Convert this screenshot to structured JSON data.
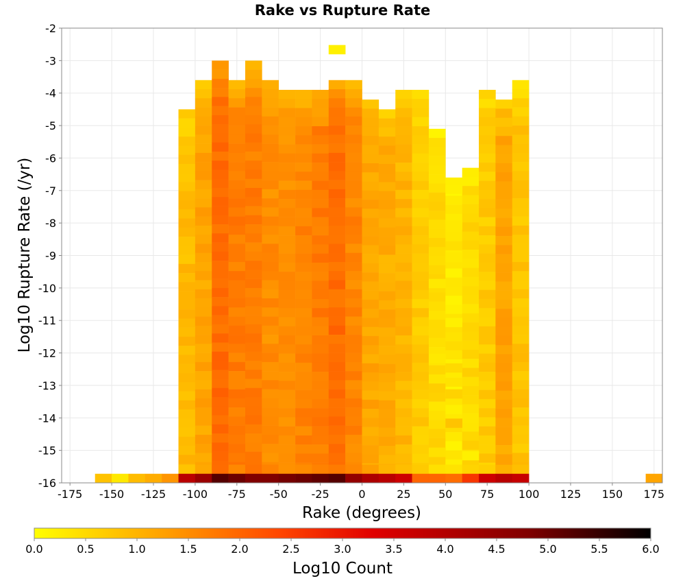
{
  "chart_data": {
    "type": "heatmap",
    "title": "Rake vs Rupture Rate",
    "xlabel": "Rake (degrees)",
    "ylabel": "Log10 Rupture Rate (/yr)",
    "xlim": [
      -180,
      180
    ],
    "ylim": [
      -16,
      -2
    ],
    "x_ticks": [
      -175,
      -150,
      -125,
      -100,
      -75,
      -50,
      -25,
      0,
      25,
      50,
      75,
      100,
      125,
      150,
      175
    ],
    "y_ticks": [
      -2,
      -3,
      -4,
      -5,
      -6,
      -7,
      -8,
      -9,
      -10,
      -11,
      -12,
      -13,
      -14,
      -15,
      -16
    ],
    "grid": true,
    "bin_width_deg": 10,
    "bin_height_log": 0.28,
    "colorbar": {
      "label": "Log10 Count",
      "min": 0,
      "max": 6,
      "ticks": [
        "0.0",
        "0.5",
        "1.0",
        "1.5",
        "2.0",
        "2.5",
        "3.0",
        "3.5",
        "4.0",
        "4.5",
        "5.0",
        "5.5",
        "6.0"
      ],
      "colors": [
        "#ffff00",
        "#ffa500",
        "#ff4500",
        "#e00000",
        "#800000",
        "#000000"
      ]
    },
    "column_profiles": [
      {
        "x": -105,
        "top": -4.5,
        "level": 0.9
      },
      {
        "x": -95,
        "top": -3.6,
        "level": 1.2
      },
      {
        "x": -85,
        "top": -3.0,
        "level": 1.9
      },
      {
        "x": -75,
        "top": -3.6,
        "level": 1.7
      },
      {
        "x": -65,
        "top": -3.0,
        "level": 1.7
      },
      {
        "x": -55,
        "top": -3.6,
        "level": 1.5
      },
      {
        "x": -45,
        "top": -3.9,
        "level": 1.5
      },
      {
        "x": -35,
        "top": -3.9,
        "level": 1.6
      },
      {
        "x": -25,
        "top": -3.9,
        "level": 1.7
      },
      {
        "x": -15,
        "top": -3.6,
        "level": 1.9
      },
      {
        "x": -5,
        "top": -3.6,
        "level": 1.6
      },
      {
        "x": 5,
        "top": -4.2,
        "level": 1.2
      },
      {
        "x": 15,
        "top": -4.5,
        "level": 1.1
      },
      {
        "x": 25,
        "top": -3.9,
        "level": 1.0
      },
      {
        "x": 35,
        "top": -3.9,
        "level": 0.7
      },
      {
        "x": 45,
        "top": -5.1,
        "level": 0.5
      },
      {
        "x": 55,
        "top": -6.6,
        "level": 0.3
      },
      {
        "x": 65,
        "top": -6.3,
        "level": 0.5
      },
      {
        "x": 75,
        "top": -3.9,
        "level": 0.7
      },
      {
        "x": 85,
        "top": -4.2,
        "level": 1.2
      },
      {
        "x": 95,
        "top": -3.6,
        "level": 0.8
      }
    ],
    "bottom_row": [
      {
        "x": -155,
        "value": 0.8
      },
      {
        "x": -145,
        "value": 0.3
      },
      {
        "x": -135,
        "value": 0.9
      },
      {
        "x": -125,
        "value": 1.1
      },
      {
        "x": -115,
        "value": 1.4
      },
      {
        "x": -105,
        "value": 3.9
      },
      {
        "x": -95,
        "value": 4.4
      },
      {
        "x": -85,
        "value": 5.2
      },
      {
        "x": -75,
        "value": 5.0
      },
      {
        "x": -65,
        "value": 4.8
      },
      {
        "x": -55,
        "value": 4.8
      },
      {
        "x": -45,
        "value": 4.9
      },
      {
        "x": -35,
        "value": 5.0
      },
      {
        "x": -25,
        "value": 5.1
      },
      {
        "x": -15,
        "value": 5.2
      },
      {
        "x": -5,
        "value": 4.5
      },
      {
        "x": 5,
        "value": 4.1
      },
      {
        "x": 15,
        "value": 3.9
      },
      {
        "x": 25,
        "value": 3.6
      },
      {
        "x": 35,
        "value": 2.0
      },
      {
        "x": 45,
        "value": 2.0
      },
      {
        "x": 55,
        "value": 1.9
      },
      {
        "x": 65,
        "value": 2.6
      },
      {
        "x": 75,
        "value": 3.6
      },
      {
        "x": 85,
        "value": 3.9
      },
      {
        "x": 95,
        "value": 3.7
      },
      {
        "x": 175,
        "value": 1.2
      }
    ],
    "isolated_cells": [
      {
        "x": -15,
        "y": -2.8,
        "value": 0.2
      },
      {
        "x": 55,
        "y": -7.1,
        "value": 0.2
      },
      {
        "x": 55,
        "y": -8.2,
        "value": 0.3
      },
      {
        "x": 55,
        "y": -9.2,
        "value": 0.3
      },
      {
        "x": 45,
        "y": -10.0,
        "value": 0.3
      },
      {
        "x": 55,
        "y": -11.2,
        "value": 0.2
      },
      {
        "x": 45,
        "y": -12.3,
        "value": 0.3
      },
      {
        "x": 55,
        "y": -12.6,
        "value": 0.5
      },
      {
        "x": 55,
        "y": -13.4,
        "value": 0.6
      },
      {
        "x": 55,
        "y": -14.3,
        "value": 0.8
      },
      {
        "x": 45,
        "y": -15.2,
        "value": 0.4
      },
      {
        "x": 65,
        "y": -15.3,
        "value": 0.2
      }
    ]
  }
}
